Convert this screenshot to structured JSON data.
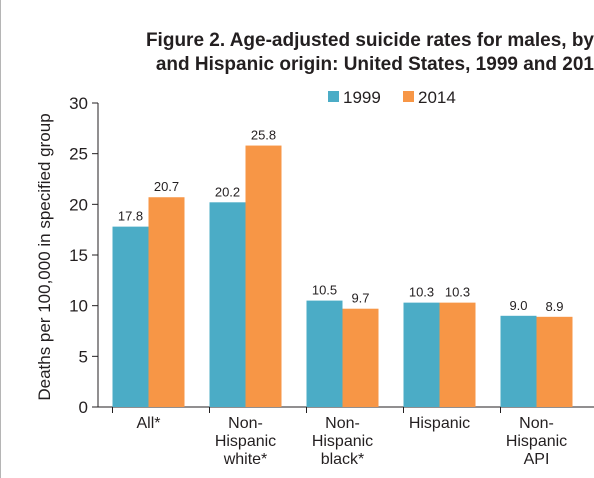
{
  "chart_data": {
    "type": "bar",
    "title_lines": [
      "Figure 2. Age-adjusted suicide rates for males, by",
      "and Hispanic origin: United States, 1999 and 201"
    ],
    "ylabel": "Deaths per 100,000 in specified group",
    "xlabel": "",
    "ylim": [
      0,
      30
    ],
    "yticks": [
      0,
      5,
      10,
      15,
      20,
      25,
      30
    ],
    "categories": [
      [
        "All*"
      ],
      [
        "Non-",
        "Hispanic",
        "white*"
      ],
      [
        "Non-",
        "Hispanic",
        "black*"
      ],
      [
        "Hispanic"
      ],
      [
        "Non-",
        "Hispanic",
        "API"
      ]
    ],
    "series": [
      {
        "name": "1999",
        "color": "#4bacc6",
        "values": [
          17.8,
          20.2,
          10.5,
          10.3,
          9.0
        ],
        "labels": [
          "17.8",
          "20.2",
          "10.5",
          "10.3",
          "9.0"
        ]
      },
      {
        "name": "2014",
        "color": "#f79646",
        "values": [
          20.7,
          25.8,
          9.7,
          10.3,
          8.9
        ],
        "labels": [
          "20.7",
          "25.8",
          "9.7",
          "10.3",
          "8.9"
        ]
      }
    ],
    "legend_position": "top",
    "grid": false
  }
}
